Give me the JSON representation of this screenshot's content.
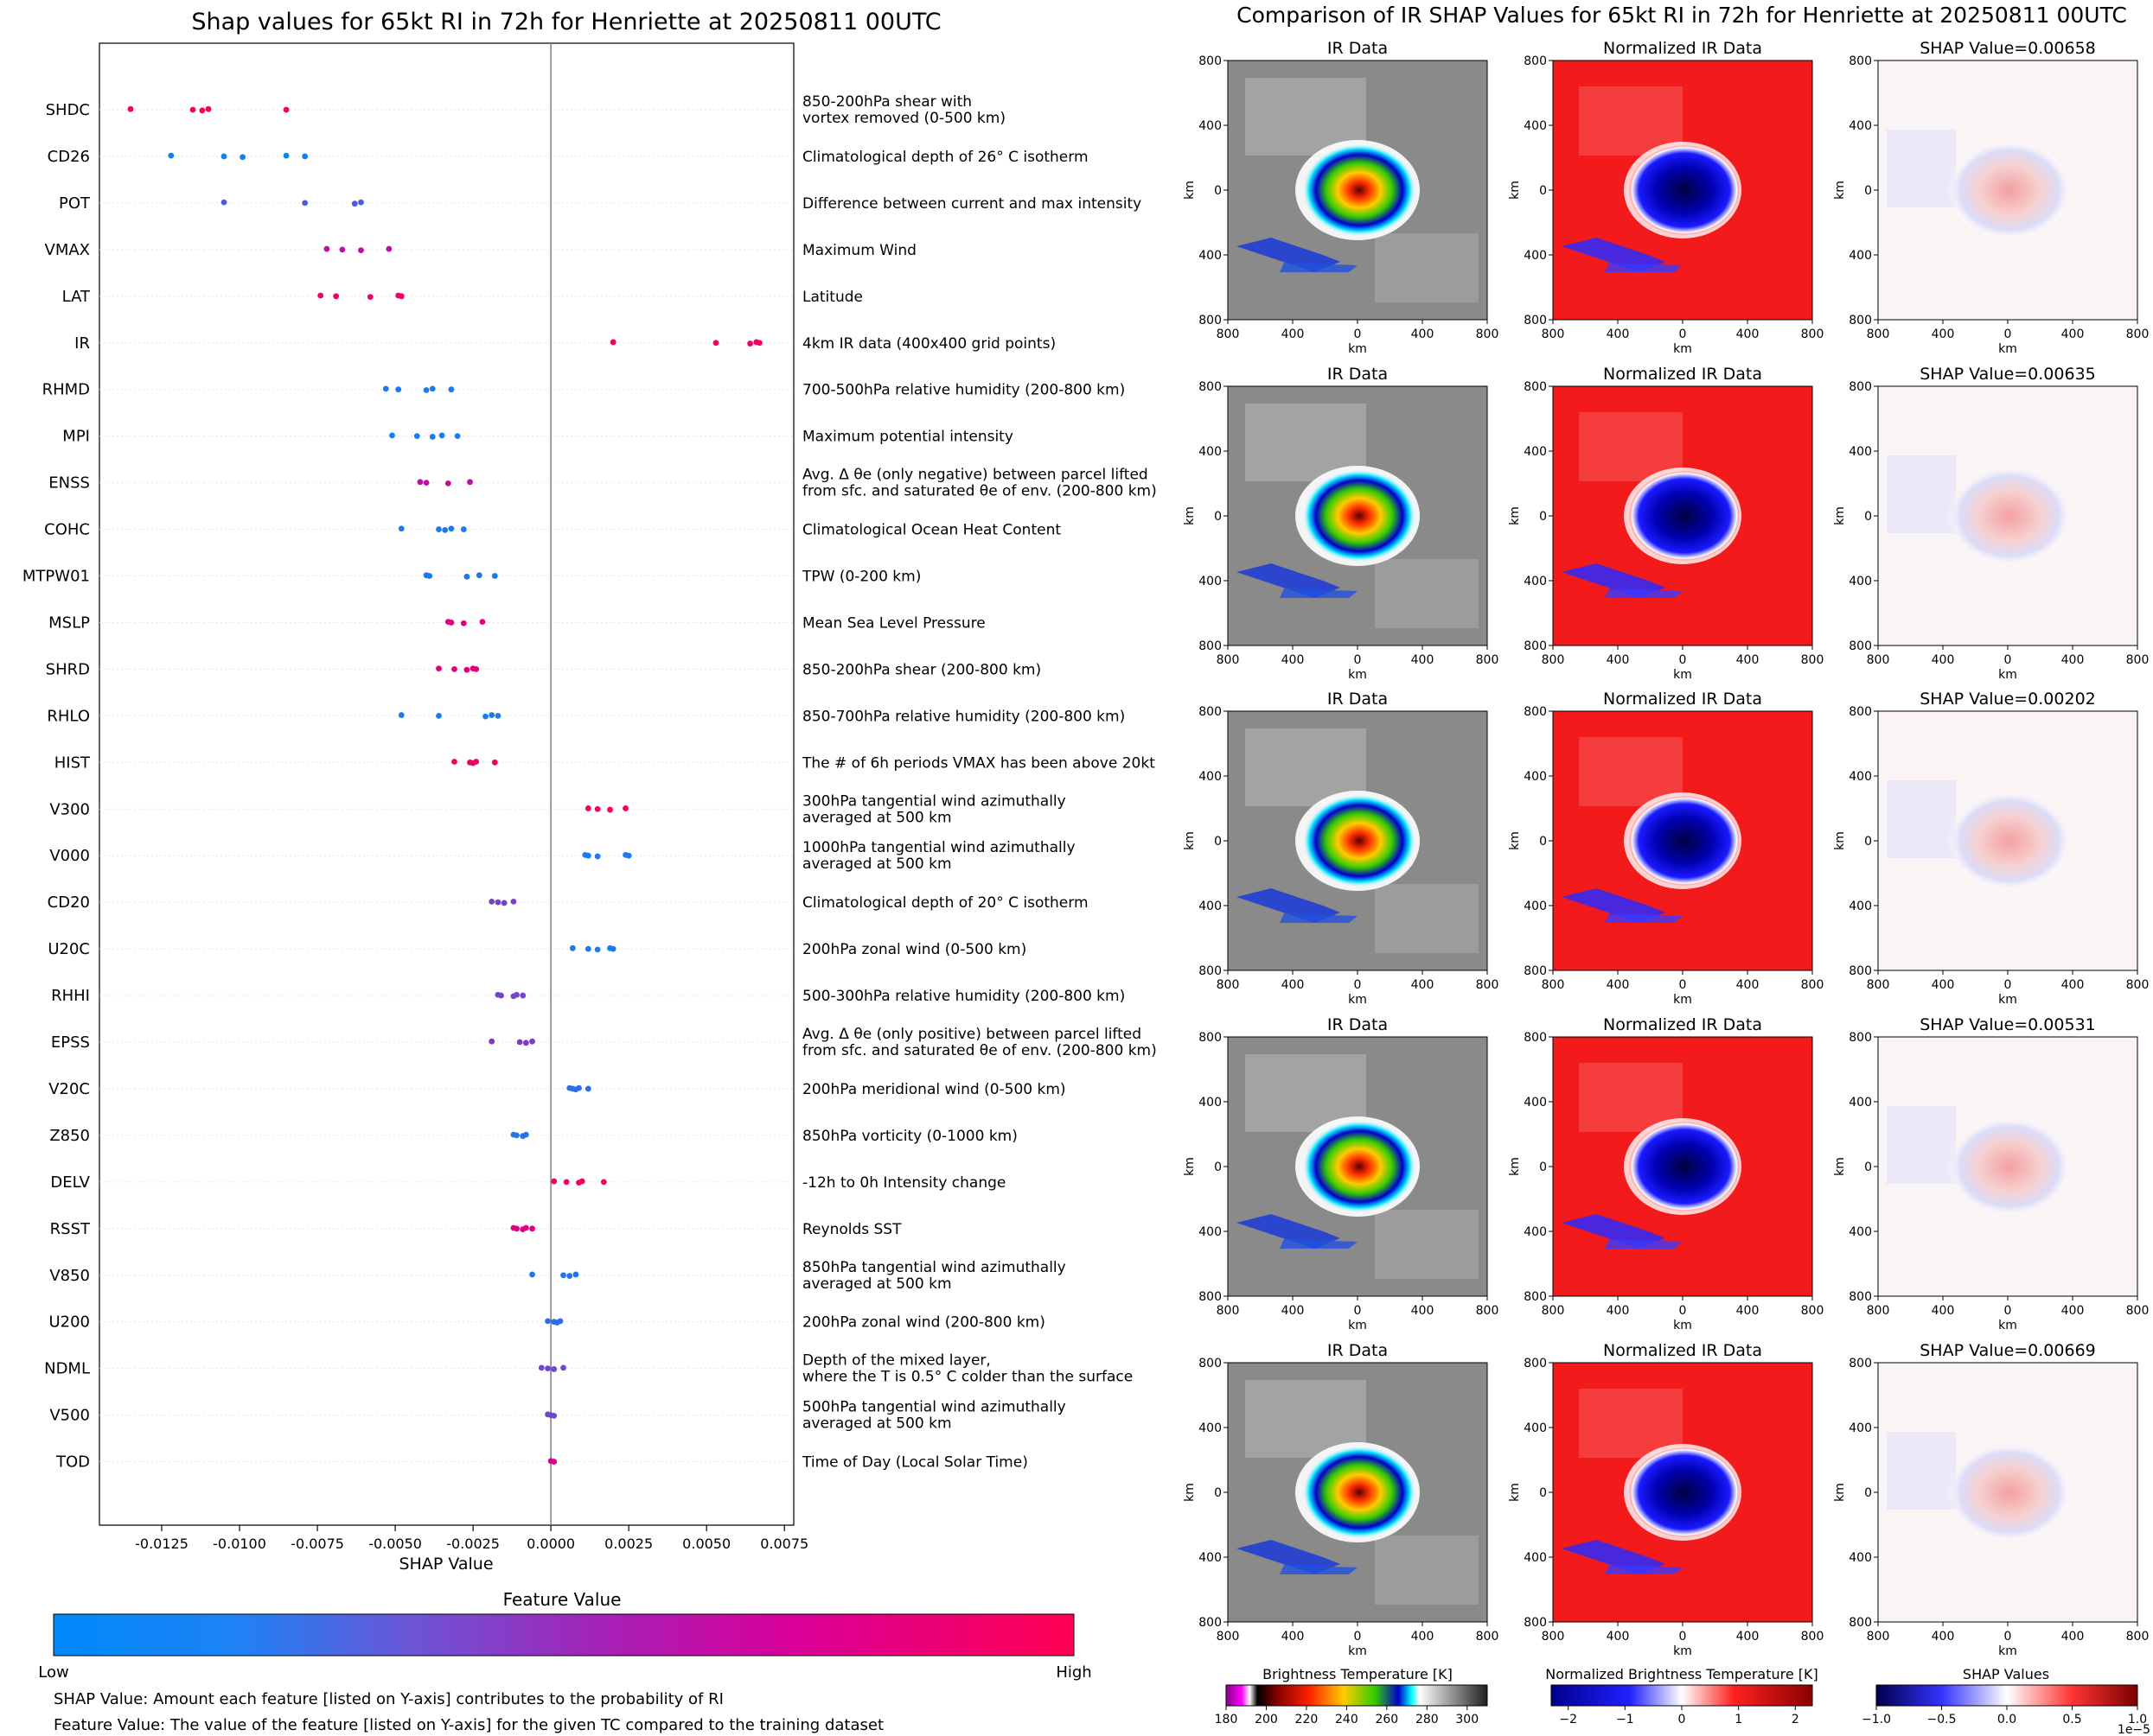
{
  "left_title": "Shap values for 65kt RI in 72h for Henriette at 20250811 00UTC",
  "right_title": "Comparison of IR SHAP Values for 65kt RI in 72h for Henriette at 20250811 00UTC",
  "chart_data": [
    {
      "type": "scatter",
      "title": "Shap values for 65kt RI in 72h for Henriette at 20250811 00UTC",
      "xlabel": "SHAP Value",
      "ylabel": "",
      "xlim": [
        -0.0145,
        0.0078
      ],
      "xticks": [
        "-0.0125",
        "-0.0100",
        "-0.0075",
        "-0.0050",
        "-0.0025",
        "0.0000",
        "0.0025",
        "0.0050",
        "0.0075"
      ],
      "xtick_values": [
        -0.0125,
        -0.01,
        -0.0075,
        -0.005,
        -0.0025,
        0,
        0.0025,
        0.005,
        0.0075
      ],
      "colorbar": {
        "title": "Feature Value",
        "low": "Low",
        "high": "High",
        "colors": [
          "#008afb",
          "#7a3fc8",
          "#d1009a",
          "#ff0052"
        ]
      },
      "features": [
        {
          "name": "SHDC",
          "desc": [
            "850-200hPa shear with",
            "vortex removed (0-500 km)"
          ],
          "fv": 0.95,
          "values": [
            -0.0135,
            -0.0115,
            -0.0112,
            -0.011,
            -0.0085
          ]
        },
        {
          "name": "CD26",
          "desc": [
            "Climatological depth of 26° C isotherm"
          ],
          "fv": 0.05,
          "values": [
            -0.0122,
            -0.0105,
            -0.0099,
            -0.0085,
            -0.0079
          ]
        },
        {
          "name": "POT",
          "desc": [
            "Difference between current and max intensity"
          ],
          "fv": 0.2,
          "values": [
            -0.0105,
            -0.0079,
            -0.0063,
            -0.0061
          ]
        },
        {
          "name": "VMAX",
          "desc": [
            "Maximum Wind"
          ],
          "fv": 0.58,
          "values": [
            -0.0072,
            -0.0067,
            -0.0061,
            -0.0052
          ]
        },
        {
          "name": "LAT",
          "desc": [
            "Latitude"
          ],
          "fv": 0.9,
          "values": [
            -0.0074,
            -0.0069,
            -0.0058,
            -0.0049,
            -0.0048
          ]
        },
        {
          "name": "IR",
          "desc": [
            "4km IR data (400x400 grid points)"
          ],
          "fv": 0.92,
          "values": [
            0.002,
            0.0053,
            0.0064,
            0.0066,
            0.0067
          ]
        },
        {
          "name": "RHMD",
          "desc": [
            "700-500hPa relative humidity (200-800 km)"
          ],
          "fv": 0.07,
          "values": [
            -0.0053,
            -0.0049,
            -0.004,
            -0.0038,
            -0.0032
          ]
        },
        {
          "name": "MPI",
          "desc": [
            "Maximum potential intensity"
          ],
          "fv": 0.06,
          "values": [
            -0.0051,
            -0.0043,
            -0.0038,
            -0.0035,
            -0.003
          ]
        },
        {
          "name": "ENSS",
          "desc": [
            "Avg. Δ θe (only negative) between parcel lifted",
            "from sfc. and saturated θe of env. (200-800 km)"
          ],
          "fv": 0.6,
          "values": [
            -0.0042,
            -0.004,
            -0.0033,
            -0.0026
          ]
        },
        {
          "name": "COHC",
          "desc": [
            "Climatological Ocean Heat Content"
          ],
          "fv": 0.07,
          "values": [
            -0.0048,
            -0.0036,
            -0.0034,
            -0.0032,
            -0.0028
          ]
        },
        {
          "name": "MTPW01",
          "desc": [
            "TPW (0-200 km)"
          ],
          "fv": 0.08,
          "values": [
            -0.004,
            -0.0039,
            -0.0027,
            -0.0023,
            -0.0018
          ]
        },
        {
          "name": "MSLP",
          "desc": [
            "Mean Sea Level Pressure"
          ],
          "fv": 0.82,
          "values": [
            -0.0033,
            -0.0032,
            -0.0028,
            -0.0022
          ]
        },
        {
          "name": "SHRD",
          "desc": [
            "850-200hPa shear (200-800 km)"
          ],
          "fv": 0.8,
          "values": [
            -0.0036,
            -0.0031,
            -0.0027,
            -0.0025,
            -0.0024
          ]
        },
        {
          "name": "RHLO",
          "desc": [
            "850-700hPa relative humidity (200-800 km)"
          ],
          "fv": 0.07,
          "values": [
            -0.0048,
            -0.0036,
            -0.0021,
            -0.0019,
            -0.0017
          ]
        },
        {
          "name": "HIST",
          "desc": [
            "The # of 6h periods VMAX has been above 20kt"
          ],
          "fv": 0.92,
          "values": [
            -0.0031,
            -0.0026,
            -0.0025,
            -0.0024,
            -0.0018
          ]
        },
        {
          "name": "V300",
          "desc": [
            "300hPa tangential wind azimuthally",
            "averaged at 500 km"
          ],
          "fv": 0.92,
          "values": [
            0.0012,
            0.0015,
            0.0019,
            0.0024
          ]
        },
        {
          "name": "V000",
          "desc": [
            "1000hPa tangential wind azimuthally",
            "averaged at 500 km"
          ],
          "fv": 0.06,
          "values": [
            0.0011,
            0.0012,
            0.0015,
            0.0024,
            0.0025
          ]
        },
        {
          "name": "CD20",
          "desc": [
            "Climatological depth of 20° C isotherm"
          ],
          "fv": 0.32,
          "values": [
            -0.0019,
            -0.0017,
            -0.0015,
            -0.0012
          ]
        },
        {
          "name": "U20C",
          "desc": [
            "200hPa zonal wind (0-500 km)"
          ],
          "fv": 0.07,
          "values": [
            0.0007,
            0.0012,
            0.0015,
            0.0019,
            0.002
          ]
        },
        {
          "name": "RHHI",
          "desc": [
            "500-300hPa relative humidity (200-800 km)"
          ],
          "fv": 0.32,
          "values": [
            -0.0017,
            -0.0016,
            -0.0012,
            -0.0011,
            -0.0009
          ]
        },
        {
          "name": "EPSS",
          "desc": [
            "Avg. Δ θe (only positive) between parcel lifted",
            "from sfc. and saturated θe of env. (200-800 km)"
          ],
          "fv": 0.35,
          "values": [
            -0.0019,
            -0.001,
            -0.0008,
            -0.0006
          ]
        },
        {
          "name": "V20C",
          "desc": [
            "200hPa meridional wind (0-500 km)"
          ],
          "fv": 0.12,
          "values": [
            0.0006,
            0.0007,
            0.0008,
            0.0009,
            0.0012
          ]
        },
        {
          "name": "Z850",
          "desc": [
            "850hPa vorticity (0-1000 km)"
          ],
          "fv": 0.1,
          "values": [
            -0.0012,
            -0.0011,
            -0.0009,
            -0.0008
          ]
        },
        {
          "name": "DELV",
          "desc": [
            "-12h to 0h Intensity change"
          ],
          "fv": 0.92,
          "values": [
            0.0001,
            0.0005,
            0.0009,
            0.001,
            0.0017
          ]
        },
        {
          "name": "RSST",
          "desc": [
            "Reynolds SST"
          ],
          "fv": 0.78,
          "values": [
            -0.0012,
            -0.0011,
            -0.0009,
            -0.0008,
            -0.0006
          ]
        },
        {
          "name": "V850",
          "desc": [
            "850hPa tangential wind azimuthally",
            "averaged at 500 km"
          ],
          "fv": 0.1,
          "values": [
            -0.0006,
            0.0004,
            0.0006,
            0.0008
          ]
        },
        {
          "name": "U200",
          "desc": [
            "200hPa zonal wind (200-800 km)"
          ],
          "fv": 0.12,
          "values": [
            -0.0001,
            0.0001,
            0.0002,
            0.0003
          ]
        },
        {
          "name": "NDML",
          "desc": [
            "Depth of the mixed layer,",
            "where the T is 0.5° C colder than the surface"
          ],
          "fv": 0.3,
          "values": [
            -0.0003,
            -0.0001,
            0.0001,
            0.0004
          ]
        },
        {
          "name": "V500",
          "desc": [
            "500hPa tangential wind azimuthally",
            "averaged at 500 km"
          ],
          "fv": 0.3,
          "values": [
            -0.0001,
            0.0,
            0.0001
          ]
        },
        {
          "name": "TOD",
          "desc": [
            "Time of Day (Local Solar Time)"
          ],
          "fv": 0.72,
          "values": [
            0.0,
            0.0001
          ]
        }
      ]
    },
    {
      "type": "heatmap",
      "title": "Comparison of IR SHAP Values for 65kt RI in 72h for Henriette at 20250811 00UTC",
      "panel_titles": [
        "IR Data",
        "Normalized IR Data"
      ],
      "shap_titles": [
        "SHAP Value=0.00658",
        "SHAP Value=0.00635",
        "SHAP Value=0.00202",
        "SHAP Value=0.00531",
        "SHAP Value=0.00669"
      ],
      "xlabel": "km",
      "ylabel": "km",
      "ticks": [
        "800",
        "400",
        "0",
        "400",
        "800"
      ],
      "colorbars": [
        {
          "title": "Brightness Temperature [K]",
          "ticks": [
            "180",
            "200",
            "220",
            "240",
            "260",
            "280",
            "300"
          ],
          "range": [
            180,
            310
          ]
        },
        {
          "title": "Normalized Brightness Temperature [K]",
          "ticks": [
            "−2",
            "−1",
            "0",
            "1",
            "2"
          ],
          "range": [
            -2.3,
            2.3
          ]
        },
        {
          "title": "SHAP Values",
          "ticks": [
            "−1.0",
            "−0.5",
            "0.0",
            "0.5",
            "1.0"
          ],
          "range": [
            -1,
            1
          ],
          "scale_label": "1e−5"
        }
      ]
    }
  ],
  "footnotes": [
    "SHAP Value: Amount each feature [listed on Y-axis] contributes to the probability of RI",
    "Feature Value: The value of the feature [listed on Y-axis] for the given TC compared to the training dataset"
  ]
}
